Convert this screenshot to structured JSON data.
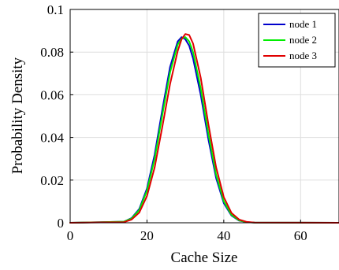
{
  "chart_data": {
    "type": "line",
    "xlabel": "Cache Size",
    "ylabel": "Probability Density",
    "xlim": [
      0,
      70
    ],
    "ylim": [
      0,
      0.1
    ],
    "xticks": [
      0,
      20,
      40,
      60
    ],
    "yticks": [
      0,
      0.02,
      0.04,
      0.06,
      0.08,
      0.1
    ],
    "ytick_labels": [
      "0",
      "0.02",
      "0.04",
      "0.06",
      "0.08",
      "0.1"
    ],
    "grid": true,
    "legend_position": "top-right",
    "series": [
      {
        "name": "node 1",
        "color": "#0000cc",
        "x": [
          0,
          14,
          16,
          18,
          20,
          22,
          24,
          26,
          28,
          29,
          30,
          31,
          32,
          34,
          36,
          38,
          40,
          42,
          44,
          46,
          48,
          70
        ],
        "y": [
          0,
          0.0005,
          0.0022,
          0.0065,
          0.016,
          0.032,
          0.053,
          0.073,
          0.085,
          0.087,
          0.086,
          0.083,
          0.077,
          0.06,
          0.039,
          0.021,
          0.0092,
          0.0034,
          0.001,
          0.0003,
          0.0001,
          0
        ]
      },
      {
        "name": "node 2",
        "color": "#00ee00",
        "x": [
          0,
          14,
          16,
          18,
          20,
          22,
          24,
          26,
          28,
          29,
          30,
          31,
          32,
          34,
          36,
          38,
          40,
          42,
          44,
          46,
          48,
          70
        ],
        "y": [
          0,
          0.0005,
          0.002,
          0.006,
          0.015,
          0.03,
          0.0505,
          0.0705,
          0.0835,
          0.0863,
          0.087,
          0.085,
          0.08,
          0.063,
          0.0415,
          0.0225,
          0.01,
          0.0037,
          0.0011,
          0.0003,
          0.0001,
          0
        ]
      },
      {
        "name": "node 3",
        "color": "#e00000",
        "x": [
          0,
          14,
          16,
          18,
          20,
          22,
          24,
          26,
          28,
          29,
          30,
          31,
          32,
          34,
          36,
          38,
          40,
          42,
          44,
          46,
          48,
          70
        ],
        "y": [
          0,
          0.0003,
          0.0015,
          0.0048,
          0.0125,
          0.026,
          0.045,
          0.065,
          0.0805,
          0.086,
          0.0885,
          0.088,
          0.084,
          0.068,
          0.046,
          0.026,
          0.012,
          0.0046,
          0.0015,
          0.0004,
          0.0001,
          0
        ]
      }
    ]
  }
}
